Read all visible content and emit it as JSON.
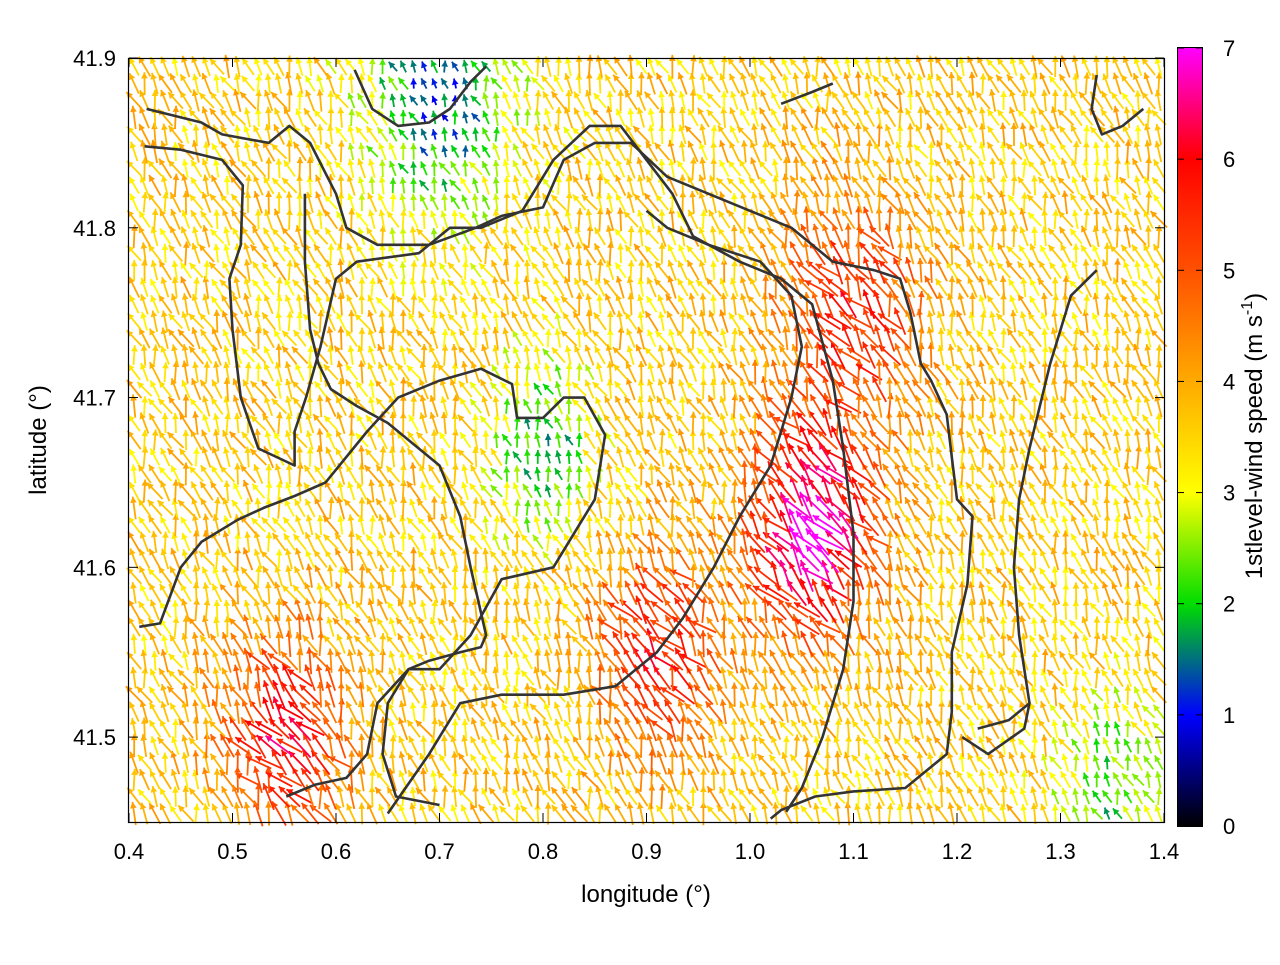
{
  "chart_data": {
    "type": "vector_field",
    "xlabel": "longitude (°)",
    "ylabel": "latitude (°)",
    "xlim": [
      0.4,
      1.4
    ],
    "ylim": [
      41.45,
      41.9
    ],
    "xticks": [
      "0.4",
      "0.5",
      "0.6",
      "0.7",
      "0.8",
      "0.9",
      "1.0",
      "1.1",
      "1.2",
      "1.3",
      "1.4"
    ],
    "yticks": [
      "41.5",
      "41.6",
      "41.7",
      "41.8",
      "41.9"
    ],
    "colorbar": {
      "label": "1stlevel-wind speed (m s-1)",
      "label_main": "1stlevel-wind speed (m s",
      "label_sup": "-1",
      "label_end": ")",
      "range": [
        0,
        7
      ],
      "ticks": [
        "0",
        "1",
        "2",
        "3",
        "4",
        "5",
        "6",
        "7"
      ],
      "palette": [
        "#000000",
        "#0000ff",
        "#00dd00",
        "#ffff00",
        "#ffaa00",
        "#ff5000",
        "#ff0000",
        "#ff00ff"
      ]
    },
    "vector_grid": {
      "lon_step": 0.01,
      "lat_step": 0.01,
      "speed_range": [
        0,
        7
      ],
      "regions": [
        {
          "lon": 1.06,
          "lat": 41.62,
          "speed": 7.0,
          "spread": 0.06
        },
        {
          "lon": 0.91,
          "lat": 41.55,
          "speed": 5.8,
          "spread": 0.06
        },
        {
          "lon": 0.55,
          "lat": 41.5,
          "speed": 6.0,
          "spread": 0.06
        },
        {
          "lon": 1.1,
          "lat": 41.75,
          "speed": 5.6,
          "spread": 0.07
        },
        {
          "lon": 0.8,
          "lat": 41.67,
          "speed": 1.8,
          "spread": 0.05
        },
        {
          "lon": 0.7,
          "lat": 41.88,
          "speed": 1.2,
          "spread": 0.07
        },
        {
          "lon": 1.35,
          "lat": 41.47,
          "speed": 2.0,
          "spread": 0.05
        }
      ],
      "base_speed": 3.6
    },
    "contours": [
      [
        [
          0.417,
          41.87
        ],
        [
          0.47,
          41.862
        ],
        [
          0.49,
          41.855
        ],
        [
          0.535,
          41.85
        ],
        [
          0.555,
          41.86
        ],
        [
          0.575,
          41.85
        ],
        [
          0.6,
          41.82
        ],
        [
          0.61,
          41.8
        ],
        [
          0.64,
          41.79
        ],
        [
          0.69,
          41.79
        ],
        [
          0.735,
          41.8
        ],
        [
          0.76,
          41.807
        ],
        [
          0.8,
          41.812
        ],
        [
          0.82,
          41.84
        ],
        [
          0.85,
          41.85
        ],
        [
          0.885,
          41.85
        ],
        [
          0.92,
          41.83
        ],
        [
          0.96,
          41.82
        ],
        [
          1.0,
          41.81
        ],
        [
          1.04,
          41.8
        ],
        [
          1.08,
          41.78
        ],
        [
          1.12,
          41.775
        ],
        [
          1.145,
          41.77
        ],
        [
          1.155,
          41.75
        ],
        [
          1.165,
          41.72
        ],
        [
          1.175,
          41.71
        ],
        [
          1.19,
          41.69
        ],
        [
          1.195,
          41.665
        ],
        [
          1.2,
          41.64
        ],
        [
          1.215,
          41.63
        ],
        [
          1.21,
          41.59
        ],
        [
          1.195,
          41.55
        ],
        [
          1.195,
          41.515
        ],
        [
          1.19,
          41.49
        ],
        [
          1.15,
          41.47
        ],
        [
          1.1,
          41.468
        ],
        [
          1.063,
          41.465
        ],
        [
          1.03,
          41.457
        ],
        [
          1.02,
          41.452
        ]
      ],
      [
        [
          0.415,
          41.848
        ],
        [
          0.45,
          41.846
        ],
        [
          0.49,
          41.84
        ],
        [
          0.51,
          41.825
        ],
        [
          0.508,
          41.79
        ],
        [
          0.497,
          41.77
        ],
        [
          0.5,
          41.74
        ],
        [
          0.508,
          41.7
        ],
        [
          0.525,
          41.67
        ],
        [
          0.56,
          41.66
        ],
        [
          0.56,
          41.68
        ],
        [
          0.571,
          41.7
        ],
        [
          0.585,
          41.73
        ],
        [
          0.6,
          41.77
        ],
        [
          0.62,
          41.78
        ],
        [
          0.68,
          41.785
        ],
        [
          0.71,
          41.8
        ],
        [
          0.74,
          41.8
        ],
        [
          0.78,
          41.81
        ],
        [
          0.81,
          41.84
        ],
        [
          0.845,
          41.86
        ],
        [
          0.875,
          41.86
        ],
        [
          0.9,
          41.84
        ],
        [
          0.925,
          41.82
        ],
        [
          0.945,
          41.795
        ],
        [
          0.96,
          41.79
        ],
        [
          0.99,
          41.78
        ],
        [
          1.03,
          41.77
        ],
        [
          1.06,
          41.755
        ],
        [
          1.08,
          41.71
        ],
        [
          1.09,
          41.67
        ],
        [
          1.1,
          41.62
        ],
        [
          1.1,
          41.58
        ],
        [
          1.09,
          41.54
        ],
        [
          1.07,
          41.5
        ],
        [
          1.05,
          41.47
        ],
        [
          1.035,
          41.456
        ]
      ],
      [
        [
          0.41,
          41.565
        ],
        [
          0.43,
          41.567
        ],
        [
          0.45,
          41.6
        ],
        [
          0.47,
          41.615
        ],
        [
          0.505,
          41.628
        ],
        [
          0.53,
          41.635
        ],
        [
          0.56,
          41.642
        ],
        [
          0.59,
          41.65
        ],
        [
          0.63,
          41.68
        ],
        [
          0.66,
          41.7
        ],
        [
          0.7,
          41.71
        ],
        [
          0.74,
          41.717
        ],
        [
          0.77,
          41.708
        ],
        [
          0.775,
          41.688
        ],
        [
          0.8,
          41.688
        ],
        [
          0.82,
          41.7
        ],
        [
          0.84,
          41.7
        ],
        [
          0.86,
          41.678
        ],
        [
          0.85,
          41.64
        ],
        [
          0.83,
          41.62
        ],
        [
          0.81,
          41.6
        ],
        [
          0.76,
          41.593
        ],
        [
          0.73,
          41.56
        ],
        [
          0.7,
          41.54
        ],
        [
          0.67,
          41.54
        ],
        [
          0.65,
          41.52
        ],
        [
          0.645,
          41.49
        ],
        [
          0.658,
          41.465
        ],
        [
          0.7,
          41.46
        ]
      ],
      [
        [
          0.552,
          41.465
        ],
        [
          0.58,
          41.472
        ],
        [
          0.61,
          41.476
        ],
        [
          0.63,
          41.49
        ],
        [
          0.64,
          41.52
        ],
        [
          0.67,
          41.54
        ],
        [
          0.69,
          41.545
        ],
        [
          0.72,
          41.55
        ],
        [
          0.74,
          41.553
        ],
        [
          0.745,
          41.56
        ],
        [
          0.73,
          41.6
        ],
        [
          0.72,
          41.63
        ],
        [
          0.7,
          41.66
        ],
        [
          0.68,
          41.67
        ],
        [
          0.65,
          41.685
        ],
        [
          0.62,
          41.695
        ],
        [
          0.595,
          41.705
        ],
        [
          0.583,
          41.72
        ],
        [
          0.575,
          41.74
        ],
        [
          0.57,
          41.78
        ],
        [
          0.57,
          41.82
        ]
      ],
      [
        [
          0.65,
          41.455
        ],
        [
          0.69,
          41.49
        ],
        [
          0.72,
          41.52
        ],
        [
          0.76,
          41.525
        ],
        [
          0.82,
          41.525
        ],
        [
          0.87,
          41.53
        ],
        [
          0.91,
          41.55
        ],
        [
          0.935,
          41.57
        ],
        [
          0.965,
          41.6
        ],
        [
          0.99,
          41.63
        ],
        [
          1.02,
          41.66
        ],
        [
          1.04,
          41.7
        ],
        [
          1.05,
          41.73
        ],
        [
          1.04,
          41.76
        ],
        [
          1.01,
          41.78
        ],
        [
          0.96,
          41.79
        ],
        [
          0.92,
          41.8
        ],
        [
          0.9,
          41.81
        ]
      ],
      [
        [
          1.22,
          41.505
        ],
        [
          1.25,
          41.51
        ],
        [
          1.27,
          41.52
        ],
        [
          1.265,
          41.505
        ],
        [
          1.23,
          41.49
        ],
        [
          1.205,
          41.5
        ]
      ],
      [
        [
          1.38,
          41.87
        ],
        [
          1.36,
          41.86
        ],
        [
          1.34,
          41.855
        ],
        [
          1.33,
          41.87
        ],
        [
          1.335,
          41.89
        ]
      ],
      [
        [
          1.335,
          41.775
        ],
        [
          1.31,
          41.76
        ],
        [
          1.29,
          41.72
        ],
        [
          1.27,
          41.67
        ],
        [
          1.26,
          41.64
        ],
        [
          1.255,
          41.6
        ],
        [
          1.26,
          41.56
        ],
        [
          1.27,
          41.52
        ]
      ],
      [
        [
          0.618,
          41.893
        ],
        [
          0.635,
          41.87
        ],
        [
          0.66,
          41.86
        ],
        [
          0.69,
          41.862
        ],
        [
          0.71,
          41.87
        ],
        [
          0.73,
          41.886
        ],
        [
          0.745,
          41.895
        ]
      ],
      [
        [
          1.03,
          41.873
        ],
        [
          1.06,
          41.88
        ],
        [
          1.08,
          41.885
        ]
      ]
    ]
  }
}
